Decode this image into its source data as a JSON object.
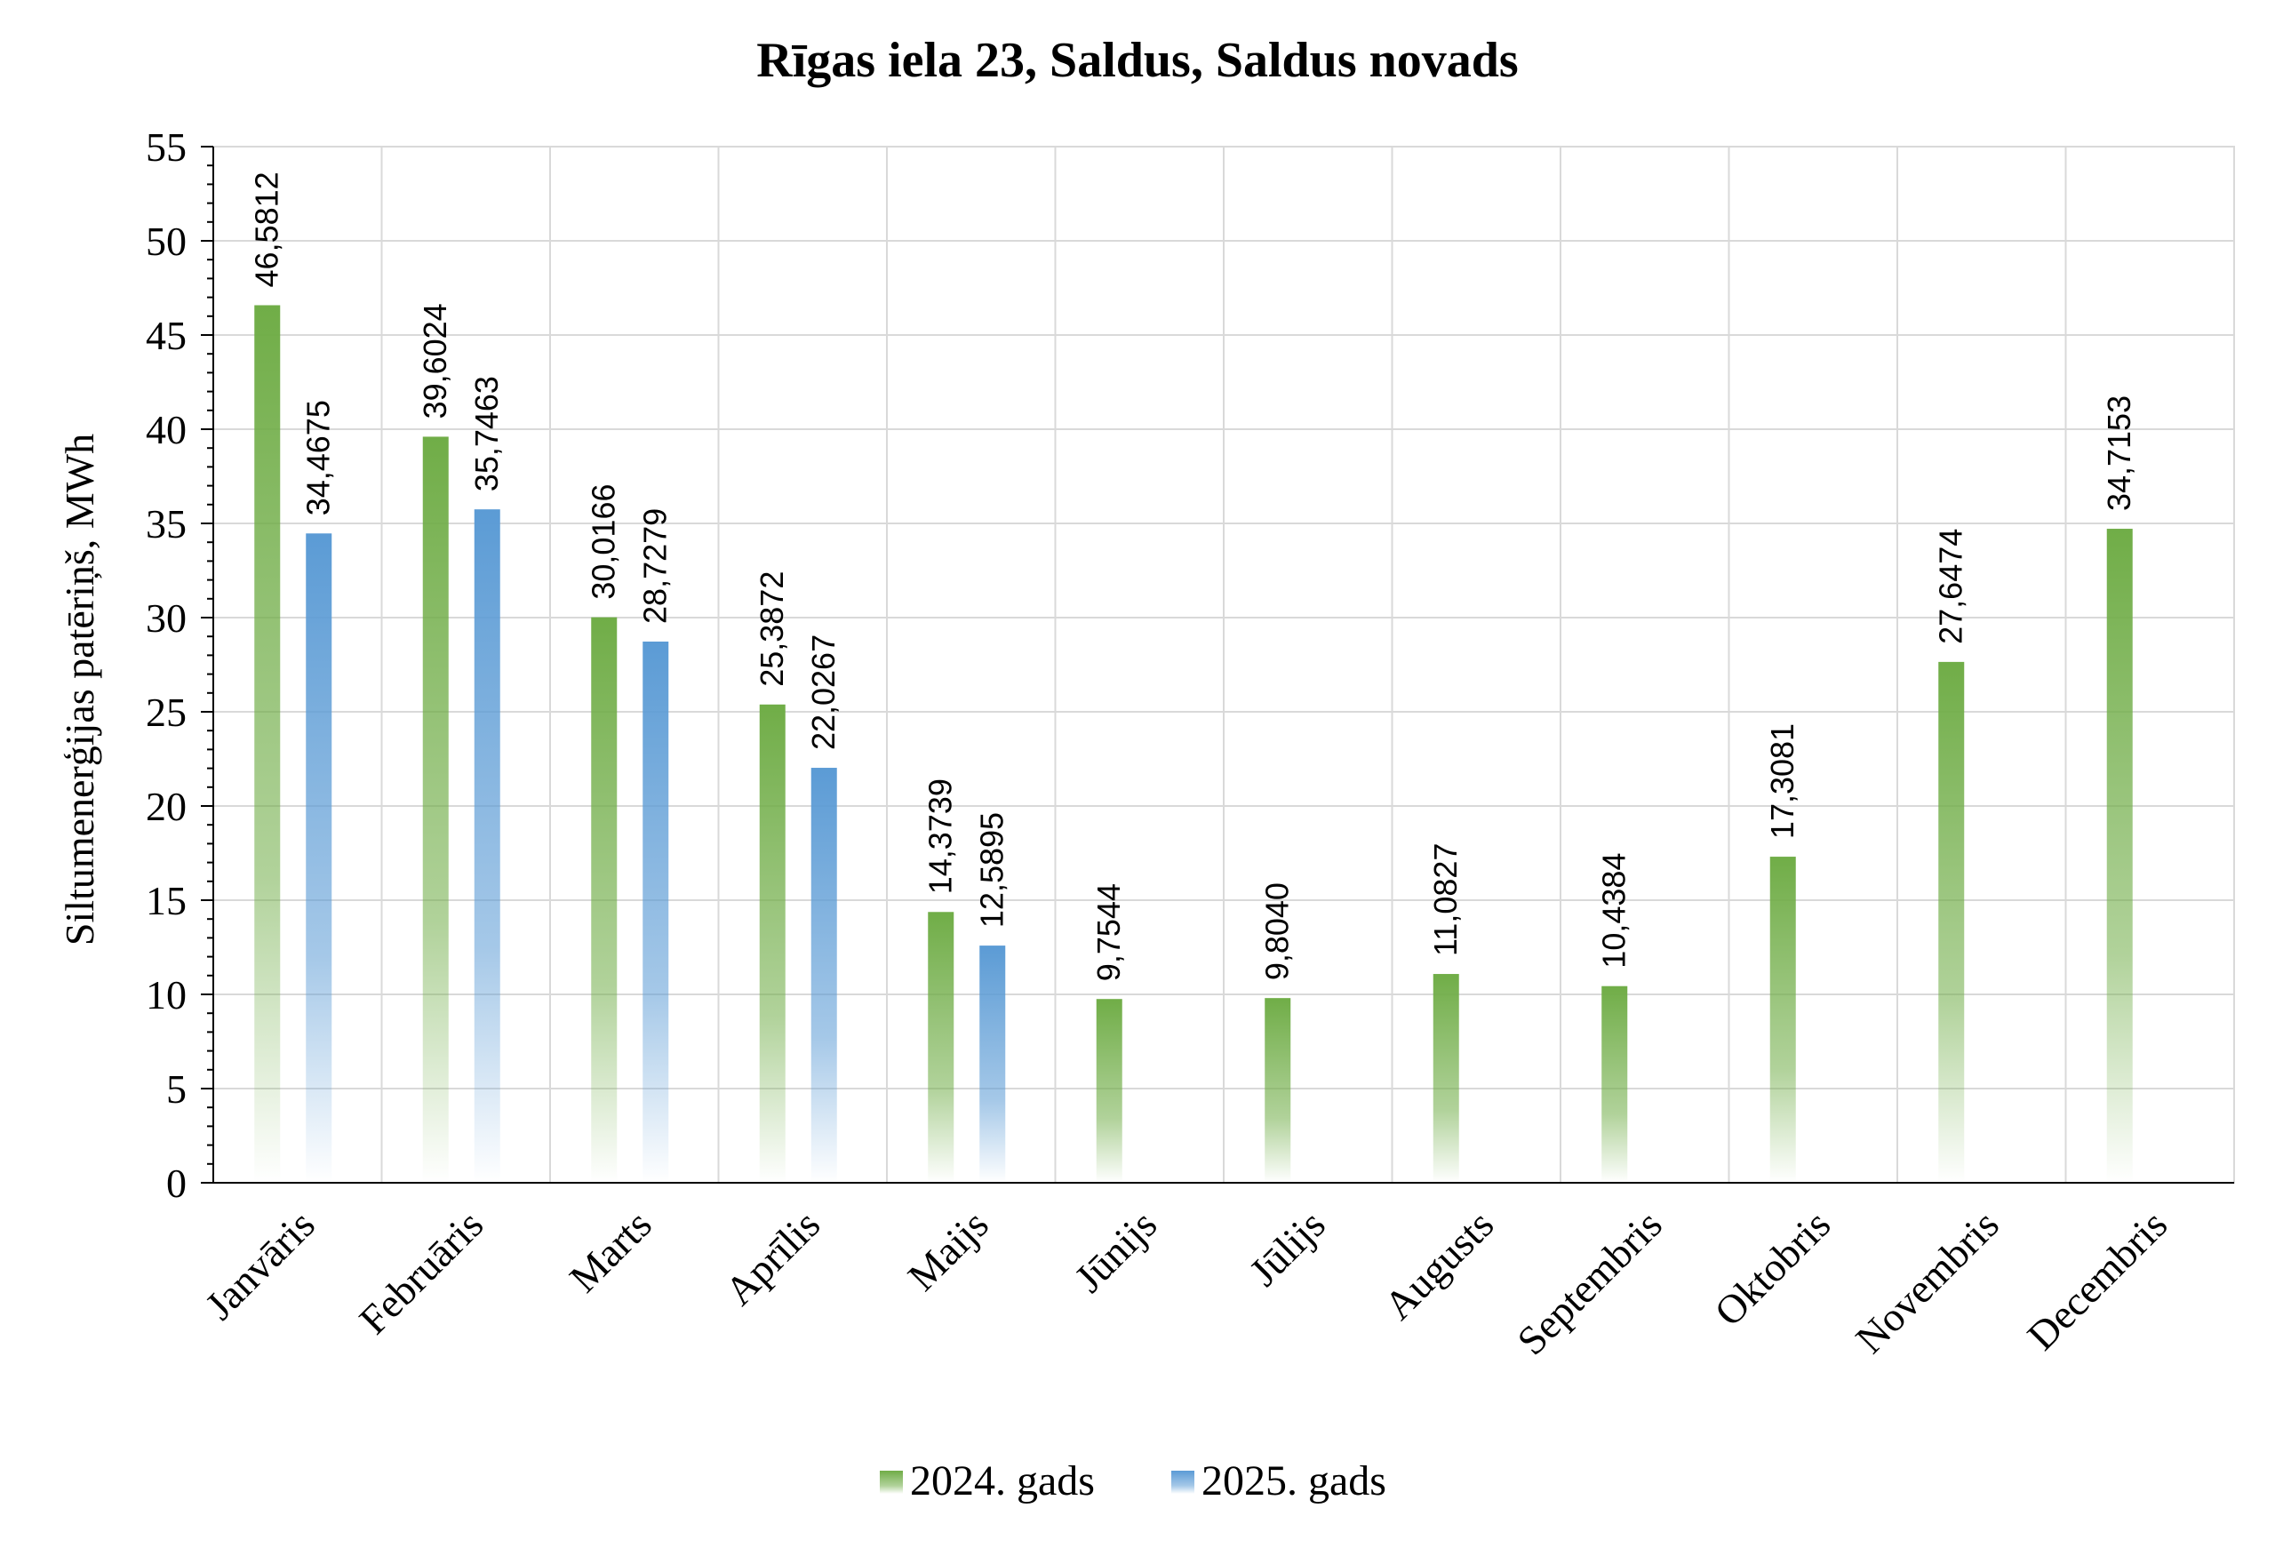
{
  "chart_data": {
    "type": "bar",
    "title": "Rīgas iela 23, Saldus, Saldus novads",
    "xlabel": "",
    "ylabel": "Siltumenerģijas patēriņš, MWh",
    "ylim": [
      0,
      55
    ],
    "yticks": [
      0,
      5,
      10,
      15,
      20,
      25,
      30,
      35,
      40,
      45,
      50,
      55
    ],
    "grid": true,
    "legend_position": "bottom",
    "categories": [
      "Janvāris",
      "Februāris",
      "Marts",
      "Aprīlis",
      "Maijs",
      "Jūnijs",
      "Jūlijs",
      "Augusts",
      "Septembris",
      "Oktobris",
      "Novembris",
      "Decembris"
    ],
    "series": [
      {
        "name": "2024. gads",
        "color": "#70ad47",
        "values": [
          46.5812,
          39.6024,
          30.0166,
          25.3872,
          14.3739,
          9.7544,
          9.804,
          11.0827,
          10.4384,
          17.3081,
          27.6474,
          34.7153
        ],
        "labels": [
          "46,5812",
          "39,6024",
          "30,0166",
          "25,3872",
          "14,3739",
          "9,7544",
          "9,8040",
          "11,0827",
          "10,4384",
          "17,3081",
          "27,6474",
          "34,7153"
        ]
      },
      {
        "name": "2025. gads",
        "color": "#5b9bd5",
        "values": [
          34.4675,
          35.7463,
          28.7279,
          22.0267,
          12.5895,
          null,
          null,
          null,
          null,
          null,
          null,
          null
        ],
        "labels": [
          "34,4675",
          "35,7463",
          "28,7279",
          "22,0267",
          "12,5895",
          "",
          "",
          "",
          "",
          "",
          "",
          ""
        ]
      }
    ]
  }
}
